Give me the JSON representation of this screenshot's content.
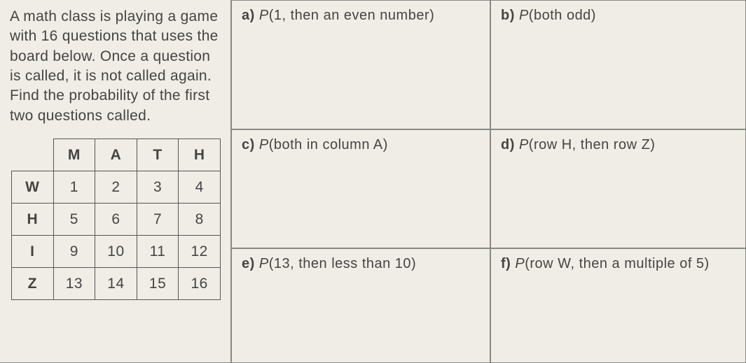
{
  "problem": {
    "text": "A math class is playing a game with 16 questions that uses the board below. Once a question is called, it is not called again. Find the probability of the first two questions called."
  },
  "table": {
    "columns": [
      "M",
      "A",
      "T",
      "H"
    ],
    "rows": [
      {
        "label": "W",
        "cells": [
          "1",
          "2",
          "3",
          "4"
        ]
      },
      {
        "label": "H",
        "cells": [
          "5",
          "6",
          "7",
          "8"
        ]
      },
      {
        "label": "I",
        "cells": [
          "9",
          "10",
          "11",
          "12"
        ]
      },
      {
        "label": "Z",
        "cells": [
          "13",
          "14",
          "15",
          "16"
        ]
      }
    ]
  },
  "questions": {
    "a": {
      "label": "a)",
      "text": "(1, then an even number)"
    },
    "b": {
      "label": "b)",
      "text": "(both odd)"
    },
    "c": {
      "label": "c)",
      "text": "(both in column A)"
    },
    "d": {
      "label": "d)",
      "text": "(row H, then row Z)"
    },
    "e": {
      "label": "e)",
      "text": "(13, then less than 10)"
    },
    "f": {
      "label": "f)",
      "text": "(row W, then a multiple of 5)"
    }
  },
  "p_symbol": "P"
}
